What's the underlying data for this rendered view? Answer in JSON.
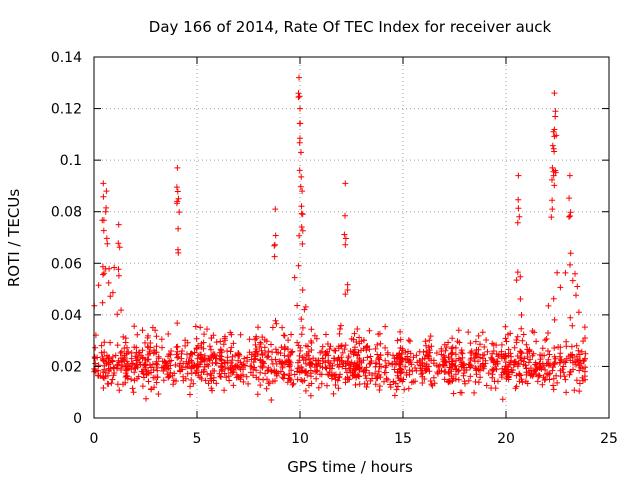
{
  "chart_data": {
    "type": "scatter",
    "title": "Day 166 of 2014, Rate Of TEC Index for receiver auck",
    "xlabel": "GPS time / hours",
    "ylabel": "ROTI / TECUs",
    "xlim": [
      0,
      25
    ],
    "ylim": [
      0,
      0.14
    ],
    "xticks": [
      0,
      5,
      10,
      15,
      20,
      25
    ],
    "xtick_labels": [
      "0",
      "5",
      "10",
      "15",
      "20",
      "25"
    ],
    "yticks": [
      0,
      0.02,
      0.04,
      0.06,
      0.08,
      0.1,
      0.12,
      0.14
    ],
    "ytick_labels": [
      "0",
      "0.02",
      "0.04",
      "0.06",
      "0.08",
      "0.1",
      "0.12",
      "0.14"
    ],
    "grid": true,
    "marker": "+",
    "color": "#ff0000",
    "series": [
      {
        "name": "ROTI",
        "x_range": [
          0,
          23.9
        ],
        "baseline_range": [
          0.005,
          0.035
        ],
        "notable_peaks": [
          {
            "x": 0.45,
            "y": 0.091
          },
          {
            "x": 0.6,
            "y": 0.088
          },
          {
            "x": 1.2,
            "y": 0.075
          },
          {
            "x": 4.05,
            "y": 0.097
          },
          {
            "x": 4.1,
            "y": 0.085
          },
          {
            "x": 8.8,
            "y": 0.081
          },
          {
            "x": 9.95,
            "y": 0.132
          },
          {
            "x": 10.0,
            "y": 0.12
          },
          {
            "x": 10.05,
            "y": 0.103
          },
          {
            "x": 10.1,
            "y": 0.088
          },
          {
            "x": 12.2,
            "y": 0.091
          },
          {
            "x": 20.6,
            "y": 0.094
          },
          {
            "x": 22.35,
            "y": 0.126
          },
          {
            "x": 22.4,
            "y": 0.119
          },
          {
            "x": 22.3,
            "y": 0.111
          },
          {
            "x": 22.25,
            "y": 0.097
          },
          {
            "x": 23.1,
            "y": 0.094
          }
        ]
      }
    ]
  }
}
